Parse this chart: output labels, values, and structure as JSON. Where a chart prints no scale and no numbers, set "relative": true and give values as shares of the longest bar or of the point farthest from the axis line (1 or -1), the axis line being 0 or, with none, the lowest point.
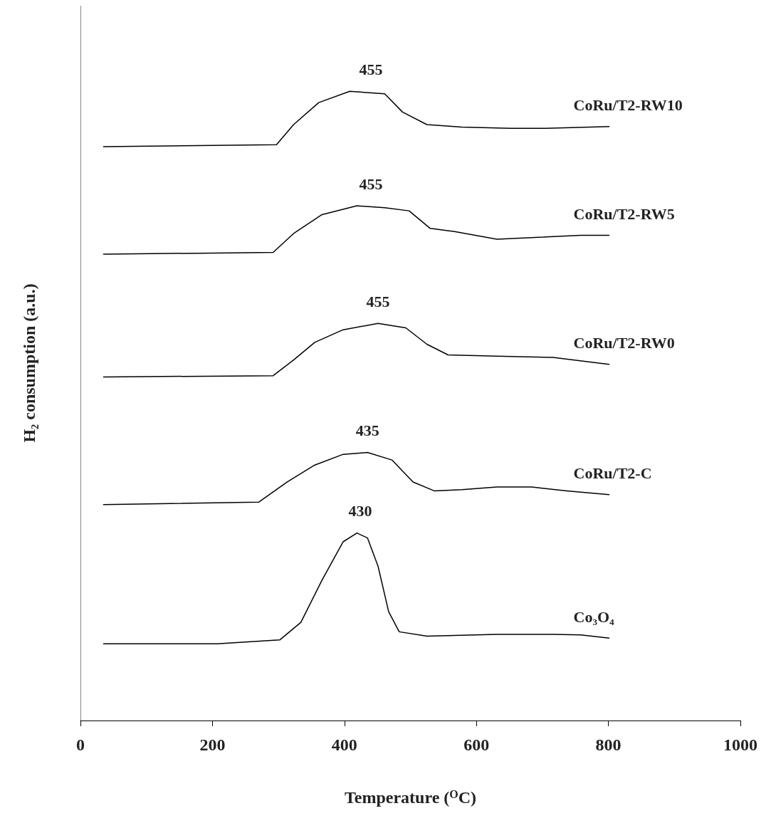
{
  "chart_data": {
    "type": "line",
    "relative": true,
    "xlabel": "Temperature ($^{O}$C)",
    "ylabel": "H₂ consumption (a.u.)",
    "xlim": [
      0,
      1000
    ],
    "xticks": [
      0,
      200,
      400,
      600,
      800,
      1000
    ],
    "tick_labels": "x",
    "grid": false,
    "legend": false,
    "marker": "none",
    "line_style": "solid",
    "series": [
      {
        "name": "Co₃O₄",
        "color": "#000000",
        "x": [
          35,
          207,
          302,
          334,
          366,
          398,
          419,
          435,
          451,
          467,
          483,
          525,
          631,
          716,
          758,
          801
        ],
        "values": [
          0.122,
          0.122,
          0.128,
          0.156,
          0.223,
          0.284,
          0.298,
          0.29,
          0.245,
          0.173,
          0.141,
          0.134,
          0.137,
          0.137,
          0.136,
          0.131
        ]
      },
      {
        "name": "CoRu/T2-C",
        "color": "#000000",
        "x": [
          35,
          270,
          313,
          355,
          398,
          435,
          472,
          504,
          536,
          578,
          631,
          684,
          737,
          801
        ],
        "values": [
          0.343,
          0.347,
          0.379,
          0.406,
          0.423,
          0.426,
          0.414,
          0.379,
          0.365,
          0.367,
          0.371,
          0.371,
          0.365,
          0.359
        ]
      },
      {
        "name": "CoRu/T2-RW0",
        "color": "#000000",
        "x": [
          35,
          292,
          323,
          355,
          398,
          451,
          493,
          525,
          557,
          631,
          716,
          801
        ],
        "values": [
          0.546,
          0.548,
          0.573,
          0.601,
          0.621,
          0.631,
          0.624,
          0.598,
          0.581,
          0.579,
          0.577,
          0.566
        ]
      },
      {
        "name": "CoRu/T2-RW5",
        "color": "#000000",
        "x": [
          35,
          292,
          323,
          366,
          419,
          461,
          498,
          530,
          567,
          631,
          695,
          758,
          801
        ],
        "values": [
          0.741,
          0.744,
          0.774,
          0.804,
          0.818,
          0.815,
          0.81,
          0.782,
          0.777,
          0.765,
          0.768,
          0.771,
          0.771
        ]
      },
      {
        "name": "CoRu/T2-RW10",
        "color": "#000000",
        "x": [
          35,
          297,
          323,
          361,
          408,
          461,
          488,
          525,
          578,
          652,
          705,
          801
        ],
        "values": [
          0.912,
          0.915,
          0.947,
          0.982,
          1.0,
          0.996,
          0.967,
          0.947,
          0.943,
          0.941,
          0.941,
          0.944
        ]
      }
    ],
    "annotations": [
      {
        "text": "430",
        "x": 424,
        "y": 0.298
      },
      {
        "text": "435",
        "x": 435,
        "y": 0.426
      },
      {
        "text": "455",
        "x": 451,
        "y": 0.631
      },
      {
        "text": "455",
        "x": 440,
        "y": 0.818
      },
      {
        "text": "455",
        "x": 440,
        "y": 1.0
      }
    ]
  }
}
